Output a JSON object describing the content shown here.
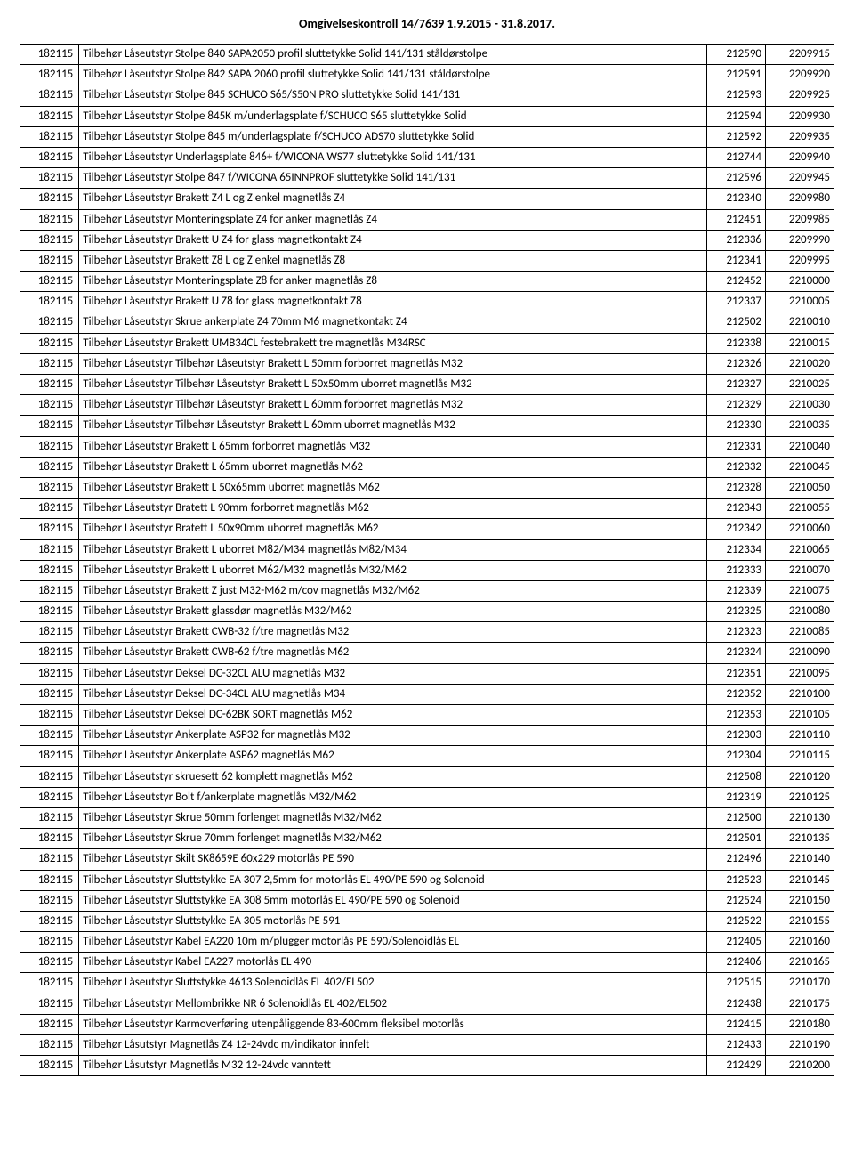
{
  "title": "Omgivelseskontroll 14/7639 1.9.2015 - 31.8.2017.",
  "columns": [
    "code1",
    "description",
    "code2",
    "code3"
  ],
  "rows": [
    [
      "182115",
      "Tilbehør Låseutstyr Stolpe 840 SAPA2050 profil sluttetykke Solid 141/131 ståldørstolpe",
      "212590",
      "2209915"
    ],
    [
      "182115",
      "Tilbehør Låseutstyr Stolpe 842 SAPA 2060 profil sluttetykke Solid 141/131 ståldørstolpe",
      "212591",
      "2209920"
    ],
    [
      "182115",
      "Tilbehør Låseutstyr Stolpe 845 SCHUCO S65/S50N PRO sluttetykke Solid 141/131",
      "212593",
      "2209925"
    ],
    [
      "182115",
      "Tilbehør Låseutstyr Stolpe 845K m/underlagsplate f/SCHUCO S65 sluttetykke Solid",
      "212594",
      "2209930"
    ],
    [
      "182115",
      "Tilbehør Låseutstyr Stolpe 845 m/underlagsplate f/SCHUCO ADS70 sluttetykke Solid",
      "212592",
      "2209935"
    ],
    [
      "182115",
      "Tilbehør Låseutstyr Underlagsplate 846+ f/WICONA WS77 sluttetykke Solid 141/131",
      "212744",
      "2209940"
    ],
    [
      "182115",
      "Tilbehør Låseutstyr Stolpe 847  f/WICONA 65INNPROF sluttetykke Solid 141/131",
      "212596",
      "2209945"
    ],
    [
      "182115",
      "Tilbehør Låseutstyr Brakett Z4 L og Z enkel magnetlås Z4",
      "212340",
      "2209980"
    ],
    [
      "182115",
      "Tilbehør Låseutstyr Monteringsplate Z4 for anker magnetlås Z4",
      "212451",
      "2209985"
    ],
    [
      "182115",
      "Tilbehør Låseutstyr Brakett U Z4 for glass magnetkontakt Z4",
      "212336",
      "2209990"
    ],
    [
      "182115",
      "Tilbehør Låseutstyr Brakett Z8 L og Z enkel magnetlås Z8",
      "212341",
      "2209995"
    ],
    [
      "182115",
      "Tilbehør Låseutstyr Monteringsplate Z8 for anker magnetlås Z8",
      "212452",
      "2210000"
    ],
    [
      "182115",
      "Tilbehør Låseutstyr Brakett U Z8 for glass magnetkontakt Z8",
      "212337",
      "2210005"
    ],
    [
      "182115",
      "Tilbehør Låseutstyr Skrue ankerplate Z4 70mm M6 magnetkontakt Z4",
      "212502",
      "2210010"
    ],
    [
      "182115",
      "Tilbehør Låseutstyr Brakett UMB34CL festebrakett tre magnetlås M34RSC",
      "212338",
      "2210015"
    ],
    [
      "182115",
      "Tilbehør Låseutstyr Tilbehør Låseutstyr Brakett L 50mm forborret magnetlås M32",
      "212326",
      "2210020"
    ],
    [
      "182115",
      "Tilbehør Låseutstyr Tilbehør Låseutstyr Brakett L 50x50mm uborret magnetlås M32",
      "212327",
      "2210025"
    ],
    [
      "182115",
      "Tilbehør Låseutstyr Tilbehør Låseutstyr Brakett L 60mm forborret magnetlås M32",
      "212329",
      "2210030"
    ],
    [
      "182115",
      "Tilbehør Låseutstyr Tilbehør Låseutstyr Brakett L 60mm uborret magnetlås M32",
      "212330",
      "2210035"
    ],
    [
      "182115",
      "Tilbehør Låseutstyr Brakett L 65mm forborret magnetlås M32",
      "212331",
      "2210040"
    ],
    [
      "182115",
      "Tilbehør Låseutstyr Brakett L 65mm uborret magnetlås M62",
      "212332",
      "2210045"
    ],
    [
      "182115",
      "Tilbehør Låseutstyr Brakett L 50x65mm uborret magnetlås M62",
      "212328",
      "2210050"
    ],
    [
      "182115",
      "Tilbehør Låseutstyr Bratett L 90mm forborret magnetlås M62",
      "212343",
      "2210055"
    ],
    [
      "182115",
      "Tilbehør Låseutstyr Bratett L 50x90mm uborret magnetlås M62",
      "212342",
      "2210060"
    ],
    [
      "182115",
      "Tilbehør Låseutstyr Brakett L uborret M82/M34 magnetlås M82/M34",
      "212334",
      "2210065"
    ],
    [
      "182115",
      "Tilbehør Låseutstyr Brakett L uborret M62/M32 magnetlås M32/M62",
      "212333",
      "2210070"
    ],
    [
      "182115",
      "Tilbehør Låseutstyr Brakett Z just M32-M62 m/cov magnetlås M32/M62",
      "212339",
      "2210075"
    ],
    [
      "182115",
      "Tilbehør Låseutstyr Brakett glassdør magnetlås M32/M62",
      "212325",
      "2210080"
    ],
    [
      "182115",
      "Tilbehør Låseutstyr Brakett CWB-32 f/tre magnetlås M32",
      "212323",
      "2210085"
    ],
    [
      "182115",
      "Tilbehør Låseutstyr Brakett CWB-62 f/tre magnetlås M62",
      "212324",
      "2210090"
    ],
    [
      "182115",
      "Tilbehør Låseutstyr Deksel DC-32CL ALU magnetlås M32",
      "212351",
      "2210095"
    ],
    [
      "182115",
      "Tilbehør Låseutstyr Deksel DC-34CL ALU magnetlås M34",
      "212352",
      "2210100"
    ],
    [
      "182115",
      "Tilbehør Låseutstyr Deksel DC-62BK SORT magnetlås M62",
      "212353",
      "2210105"
    ],
    [
      "182115",
      "Tilbehør Låseutstyr Ankerplate ASP32 for magnetlås M32",
      "212303",
      "2210110"
    ],
    [
      "182115",
      "Tilbehør Låseutstyr Ankerplate ASP62 magnetlås M62",
      "212304",
      "2210115"
    ],
    [
      "182115",
      "Tilbehør Låseutstyr skruesett 62 komplett magnetlås M62",
      "212508",
      "2210120"
    ],
    [
      "182115",
      "Tilbehør Låseutstyr Bolt f/ankerplate magnetlås M32/M62",
      "212319",
      "2210125"
    ],
    [
      "182115",
      "Tilbehør Låseutstyr Skrue 50mm forlenget magnetlås M32/M62",
      "212500",
      "2210130"
    ],
    [
      "182115",
      "Tilbehør Låseutstyr Skrue 70mm forlenget magnetlås M32/M62",
      "212501",
      "2210135"
    ],
    [
      "182115",
      "Tilbehør Låseutstyr Skilt SK8659E 60x229 motorlås PE 590",
      "212496",
      "2210140"
    ],
    [
      "182115",
      "Tilbehør Låseutstyr Sluttstykke EA 307 2,5mm for motorlås EL 490/PE 590 og Solenoid",
      "212523",
      "2210145"
    ],
    [
      "182115",
      "Tilbehør Låseutstyr Sluttstykke EA 308 5mm motorlås EL 490/PE 590 og Solenoid",
      "212524",
      "2210150"
    ],
    [
      "182115",
      "Tilbehør Låseutstyr Sluttstykke EA 305 motorlås PE 591",
      "212522",
      "2210155"
    ],
    [
      "182115",
      "Tilbehør Låseutstyr Kabel EA220 10m m/plugger motorlås PE 590/Solenoidlås EL",
      "212405",
      "2210160"
    ],
    [
      "182115",
      "Tilbehør Låseutstyr Kabel EA227 motorlås EL 490",
      "212406",
      "2210165"
    ],
    [
      "182115",
      "Tilbehør Låseutstyr Sluttstykke 4613 Solenoidlås EL 402/EL502",
      "212515",
      "2210170"
    ],
    [
      "182115",
      "Tilbehør Låseutstyr Mellombrikke NR 6 Solenoidlås EL 402/EL502",
      "212438",
      "2210175"
    ],
    [
      "182115",
      "Tilbehør Låseutstyr Karmoverføring utenpåliggende 83-600mm fleksibel motorlås",
      "212415",
      "2210180"
    ],
    [
      "182115",
      "Tilbehør Låsutstyr Magnetlås Z4 12-24vdc m/indikator innfelt",
      "212433",
      "2210190"
    ],
    [
      "182115",
      "Tilbehør Låsutstyr Magnetlås M32 12-24vdc vanntett",
      "212429",
      "2210200"
    ]
  ]
}
